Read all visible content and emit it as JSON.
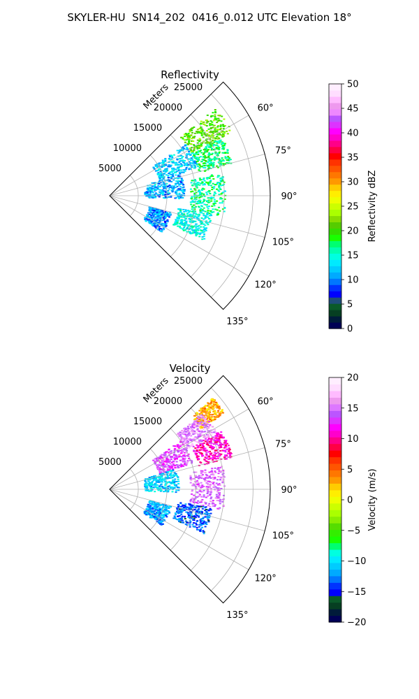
{
  "figure_title": "SKYLER-HU  SN14_202  0416_0.012 UTC Elevation 18°",
  "colors": {
    "reflectivity_scale": [
      "#000055",
      "#001b3a",
      "#063f22",
      "#0a5a2a",
      "#1f4d7a",
      "#0000ff",
      "#0033ff",
      "#0077ff",
      "#00aaff",
      "#00ccff",
      "#00eaff",
      "#00ffe0",
      "#00ffb0",
      "#00ff70",
      "#19ff00",
      "#33dd00",
      "#55cc00",
      "#88dd00",
      "#aaff00",
      "#ccff00",
      "#eeff00",
      "#ffee00",
      "#ffcc00",
      "#ff9900",
      "#ff7700",
      "#ff5500",
      "#ff3300",
      "#ff0000",
      "#ff0044",
      "#ff0088",
      "#ff00cc",
      "#ff00ff",
      "#dd33ff",
      "#bb55ff",
      "#ee88ff",
      "#ee99ee",
      "#ffbbff",
      "#ffddff",
      "#ffeeff"
    ],
    "velocity_scale": [
      "#000055",
      "#001b3a",
      "#063f22",
      "#0a5a2a",
      "#0000ff",
      "#0033ff",
      "#0077ff",
      "#00aaff",
      "#00ccff",
      "#00eaff",
      "#00ffe0",
      "#00ff70",
      "#19ff00",
      "#33ee00",
      "#55dd00",
      "#88ee00",
      "#aaff00",
      "#ccff00",
      "#eeff00",
      "#ffee00",
      "#ffcc00",
      "#ff9900",
      "#ff7700",
      "#ff5500",
      "#ff3300",
      "#ff0000",
      "#ff0044",
      "#ff0088",
      "#ff00cc",
      "#ff00ff",
      "#dd33ff",
      "#bb55ff",
      "#dd77ff",
      "#ee99ee",
      "#ffbbff",
      "#ffddff",
      "#ffeeff"
    ]
  },
  "chart_data": [
    {
      "type": "heatmap",
      "subtype": "polar-sector radar PPI",
      "title": "Reflectivity",
      "radial_label": "Meters",
      "radial_ticks": [
        5000,
        10000,
        15000,
        20000,
        25000
      ],
      "radial_tick_labels": [
        "5000",
        "10000",
        "15000",
        "20000",
        "25000"
      ],
      "r_max": 28000,
      "theta_range_deg": [
        45,
        135
      ],
      "theta_ticks": [
        60,
        75,
        90,
        105,
        120,
        135
      ],
      "theta_tick_labels": [
        "60°",
        "75°",
        "90°",
        "105°",
        "120°",
        "135°"
      ],
      "grid": true,
      "colorbar": {
        "label": "Reflectivity dBZ",
        "range": [
          0,
          50
        ],
        "ticks": [
          0,
          5,
          10,
          15,
          20,
          25,
          30,
          35,
          40,
          45,
          50
        ],
        "tick_labels": [
          "0",
          "5",
          "10",
          "15",
          "20",
          "25",
          "30",
          "35",
          "40",
          "45",
          "50"
        ]
      },
      "echo_regions": [
        {
          "theta": [
            50,
            62
          ],
          "r": [
            16000,
            24000
          ],
          "value": 21
        },
        {
          "theta": [
            62,
            75
          ],
          "r": [
            16000,
            22000
          ],
          "value": 17
        },
        {
          "theta": [
            55,
            72
          ],
          "r": [
            9000,
            16000
          ],
          "value": 12
        },
        {
          "theta": [
            72,
            92
          ],
          "r": [
            6000,
            13000
          ],
          "value": 11
        },
        {
          "theta": [
            78,
            100
          ],
          "r": [
            14000,
            20000
          ],
          "value": 16
        },
        {
          "theta": [
            100,
            115
          ],
          "r": [
            12000,
            18000
          ],
          "value": 14
        },
        {
          "theta": [
            105,
            125
          ],
          "r": [
            7000,
            11000
          ],
          "value": 10
        }
      ]
    },
    {
      "type": "heatmap",
      "subtype": "polar-sector radar PPI",
      "title": "Velocity",
      "radial_label": "Meters",
      "radial_ticks": [
        5000,
        10000,
        15000,
        20000,
        25000
      ],
      "radial_tick_labels": [
        "5000",
        "10000",
        "15000",
        "20000",
        "25000"
      ],
      "r_max": 28000,
      "theta_range_deg": [
        45,
        135
      ],
      "theta_ticks": [
        60,
        75,
        90,
        105,
        120,
        135
      ],
      "theta_tick_labels": [
        "60°",
        "75°",
        "90°",
        "105°",
        "120°",
        "135°"
      ],
      "grid": true,
      "colorbar": {
        "label": "Velocity (m/s)",
        "range": [
          -20,
          20
        ],
        "ticks": [
          -20,
          -15,
          -10,
          -5,
          0,
          5,
          10,
          15,
          20
        ],
        "tick_labels": [
          "−20",
          "−15",
          "−10",
          "−5",
          "0",
          "5",
          "10",
          "15",
          "20"
        ]
      },
      "echo_regions": [
        {
          "theta": [
            48,
            56
          ],
          "r": [
            19000,
            24000
          ],
          "value": 3
        },
        {
          "theta": [
            50,
            62
          ],
          "r": [
            15000,
            21000
          ],
          "value": 16
        },
        {
          "theta": [
            62,
            75
          ],
          "r": [
            16000,
            22000
          ],
          "value": 11
        },
        {
          "theta": [
            55,
            72
          ],
          "r": [
            9000,
            15000
          ],
          "value": 14
        },
        {
          "theta": [
            72,
            92
          ],
          "r": [
            6000,
            12000
          ],
          "value": -11
        },
        {
          "theta": [
            78,
            100
          ],
          "r": [
            14000,
            20000
          ],
          "value": 15
        },
        {
          "theta": [
            100,
            115
          ],
          "r": [
            12000,
            18000
          ],
          "value": -14
        },
        {
          "theta": [
            105,
            125
          ],
          "r": [
            7000,
            11000
          ],
          "value": -12
        }
      ]
    }
  ]
}
